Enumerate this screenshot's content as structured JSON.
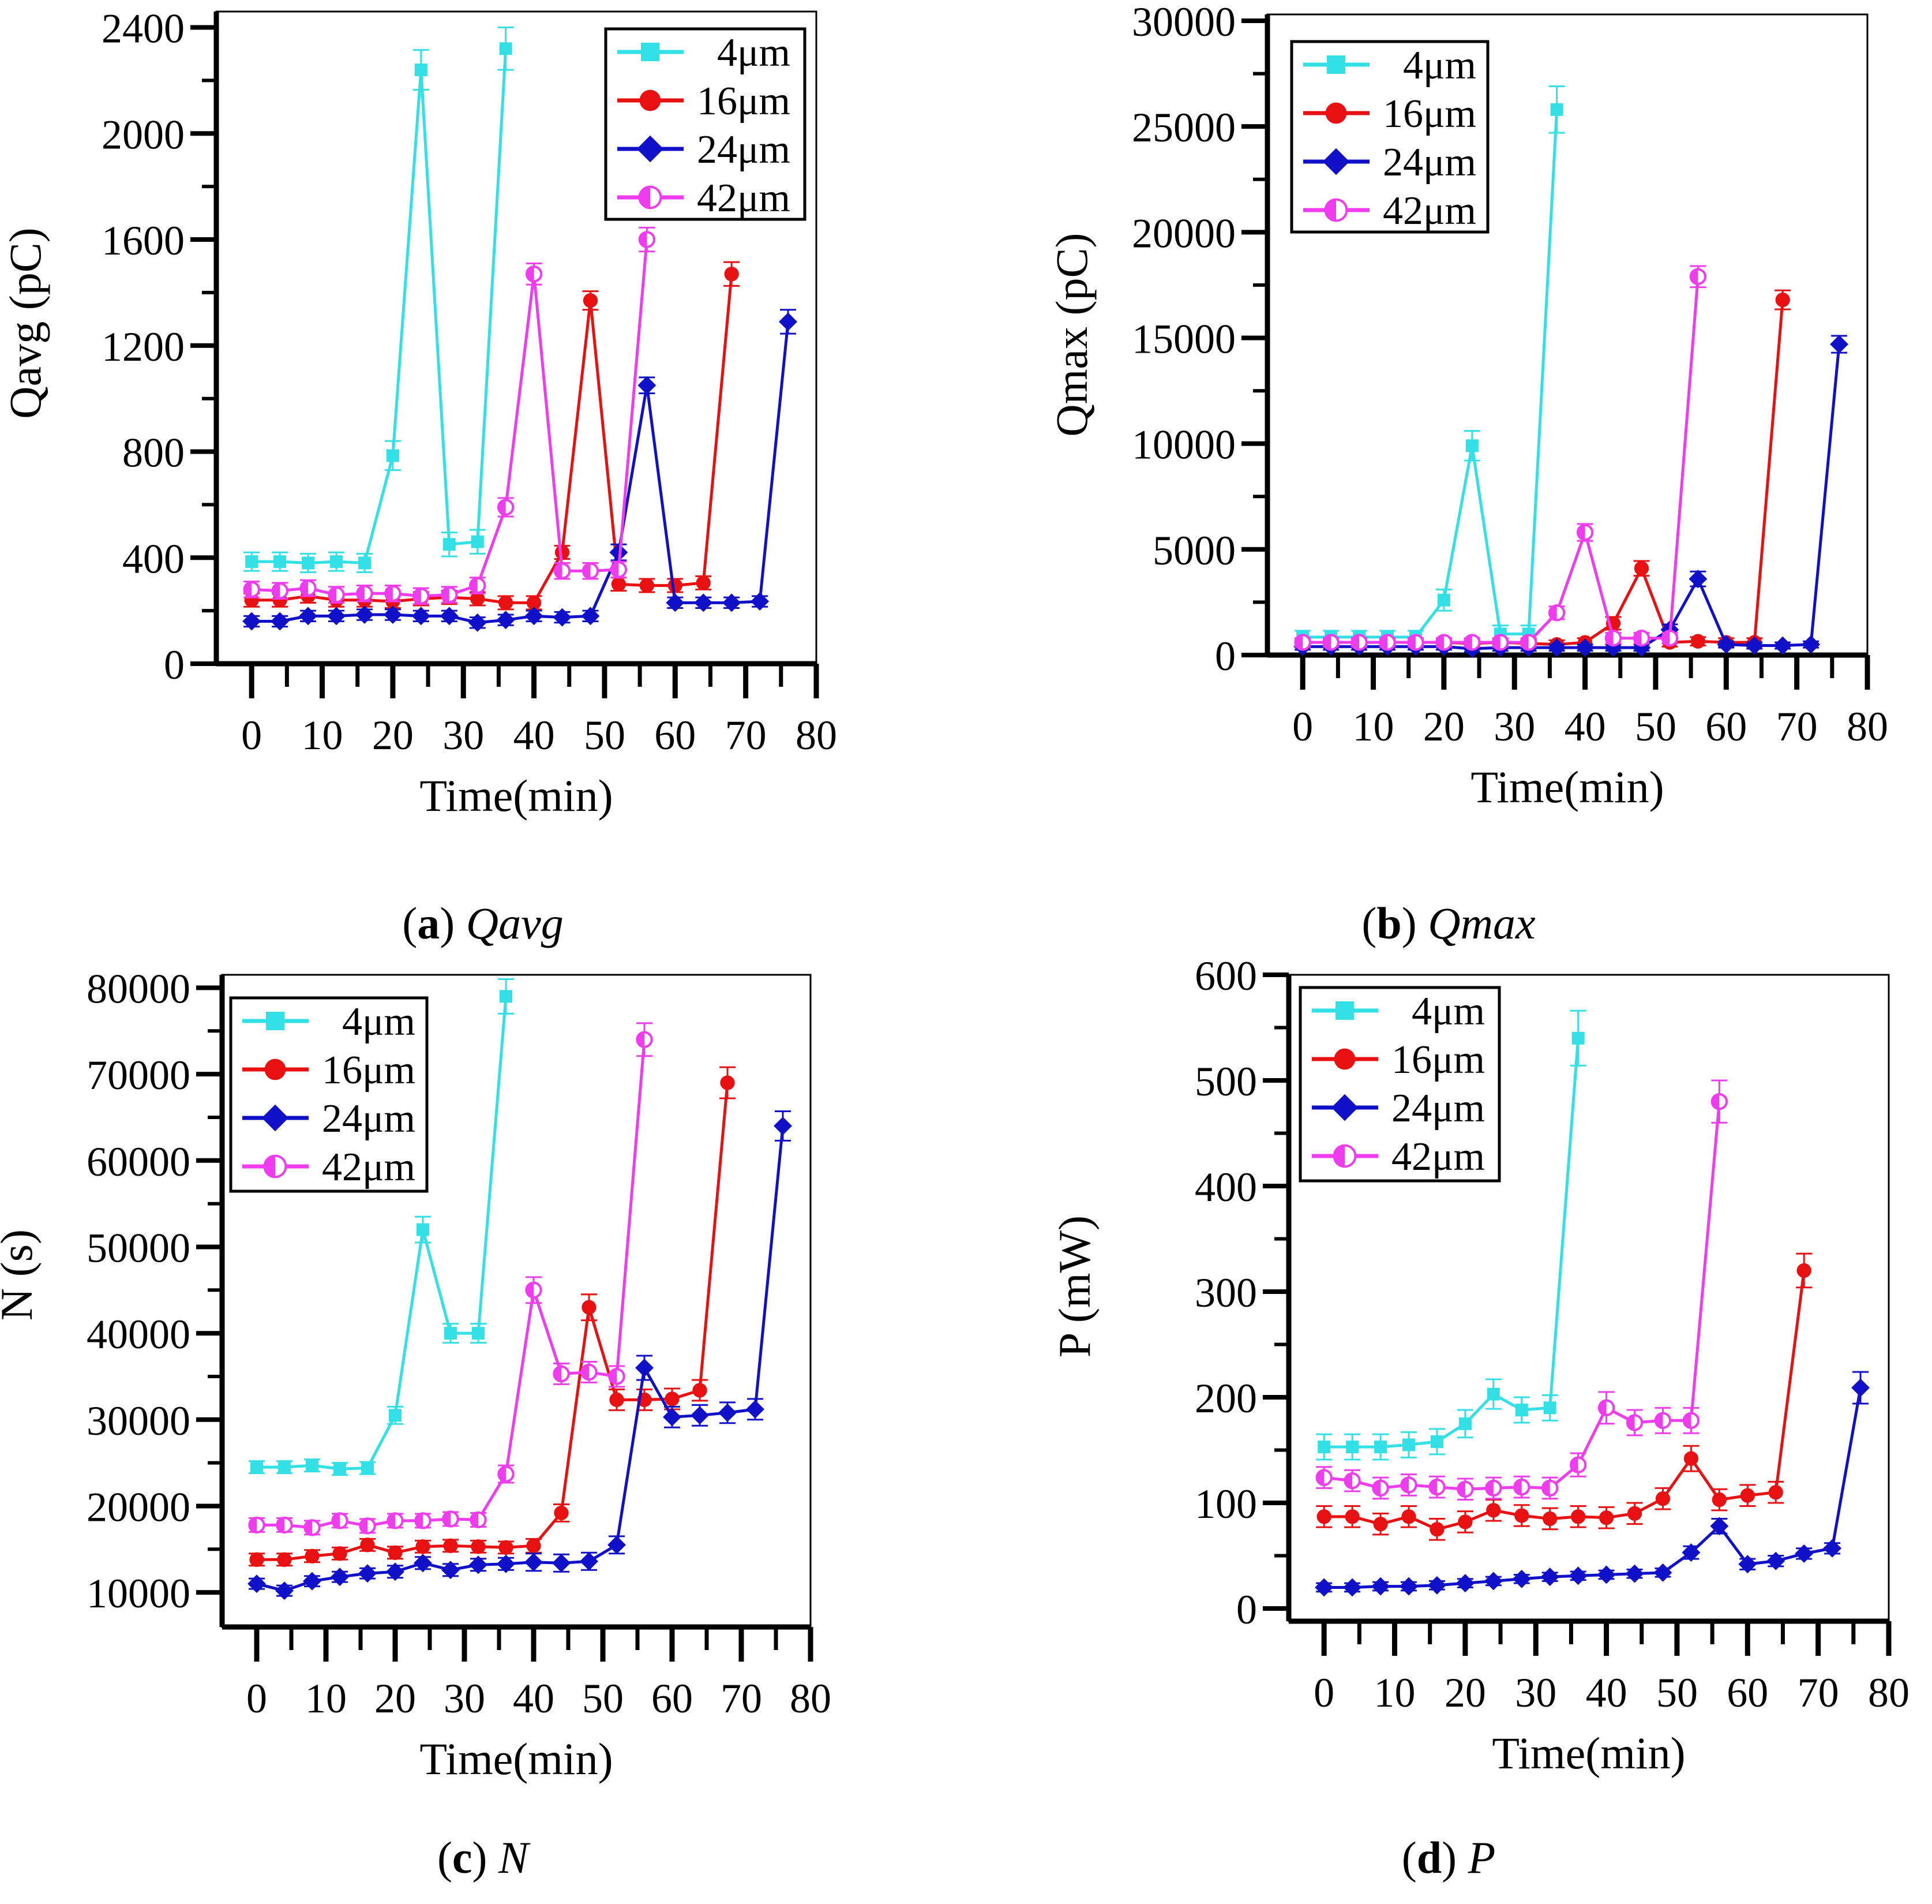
{
  "figure": {
    "panels": [
      {
        "id": "a",
        "caption": {
          "letter": "a",
          "text": "Qavg"
        }
      },
      {
        "id": "b",
        "caption": {
          "letter": "b",
          "text": "Qmax"
        }
      },
      {
        "id": "c",
        "caption": {
          "letter": "c",
          "text": "N"
        }
      },
      {
        "id": "d",
        "caption": {
          "letter": "d",
          "text": "P"
        }
      }
    ]
  },
  "colors": {
    "4um": "#33e0e6",
    "16um": "#e81010",
    "24um": "#1010c8",
    "42um": "#ee3cee"
  },
  "chart_data": [
    {
      "type": "line",
      "panel": "a",
      "title": "",
      "xlabel": "Time(min)",
      "ylabel": "Qavg (pC)",
      "xlim": [
        -5,
        80
      ],
      "ylim": [
        0,
        2460
      ],
      "xticks": [
        0,
        10,
        20,
        30,
        40,
        50,
        60,
        70,
        80
      ],
      "yticks": [
        0,
        400,
        800,
        1200,
        1600,
        2000,
        2400
      ],
      "legend_position": "top-right",
      "series": [
        {
          "name": "4μm",
          "marker": "square",
          "color": "#33e0e6",
          "x": [
            0,
            4,
            8,
            12,
            16,
            20,
            24,
            28,
            32,
            36
          ],
          "y": [
            385,
            385,
            380,
            385,
            380,
            785,
            2240,
            450,
            460,
            2320
          ],
          "err": [
            35,
            35,
            35,
            35,
            35,
            55,
            75,
            45,
            45,
            80
          ]
        },
        {
          "name": "16μm",
          "marker": "circle",
          "color": "#e81010",
          "x": [
            0,
            4,
            8,
            12,
            16,
            20,
            24,
            28,
            32,
            36,
            40,
            44,
            48,
            52,
            56,
            60,
            64,
            68
          ],
          "y": [
            240,
            240,
            255,
            240,
            240,
            235,
            245,
            250,
            245,
            230,
            230,
            420,
            1370,
            300,
            295,
            295,
            305,
            1470
          ],
          "err": [
            25,
            25,
            25,
            25,
            25,
            25,
            25,
            25,
            25,
            25,
            25,
            25,
            35,
            25,
            25,
            25,
            25,
            45
          ]
        },
        {
          "name": "24μm",
          "marker": "diamond",
          "color": "#1010c8",
          "x": [
            0,
            4,
            8,
            12,
            16,
            20,
            24,
            28,
            32,
            36,
            40,
            44,
            48,
            52,
            56,
            60,
            64,
            68,
            72,
            76
          ],
          "y": [
            160,
            160,
            180,
            180,
            185,
            185,
            180,
            180,
            155,
            165,
            180,
            175,
            180,
            420,
            1050,
            230,
            230,
            230,
            235,
            1290
          ],
          "err": [
            20,
            20,
            20,
            20,
            20,
            20,
            20,
            20,
            20,
            20,
            20,
            20,
            20,
            30,
            30,
            20,
            20,
            20,
            20,
            45
          ]
        },
        {
          "name": "42μm",
          "marker": "half-circle",
          "color": "#ee3cee",
          "x": [
            0,
            4,
            8,
            12,
            16,
            20,
            24,
            28,
            32,
            36,
            40,
            44,
            48,
            52,
            56
          ],
          "y": [
            280,
            275,
            285,
            260,
            265,
            265,
            255,
            260,
            295,
            590,
            1470,
            350,
            350,
            355,
            1600
          ],
          "err": [
            30,
            30,
            30,
            30,
            30,
            30,
            30,
            30,
            30,
            35,
            40,
            30,
            30,
            30,
            45
          ]
        }
      ]
    },
    {
      "type": "line",
      "panel": "b",
      "title": "",
      "xlabel": "Time(min)",
      "ylabel": "Qmax (pC)",
      "xlim": [
        -5,
        80
      ],
      "ylim": [
        0,
        30300
      ],
      "xticks": [
        0,
        10,
        20,
        30,
        40,
        50,
        60,
        70,
        80
      ],
      "yticks": [
        0,
        5000,
        10000,
        15000,
        20000,
        25000,
        30000
      ],
      "legend_position": "top-left",
      "series": [
        {
          "name": "4μm",
          "marker": "square",
          "color": "#33e0e6",
          "x": [
            0,
            4,
            8,
            12,
            16,
            20,
            24,
            28,
            32,
            36
          ],
          "y": [
            850,
            850,
            850,
            850,
            850,
            2600,
            9900,
            1000,
            1000,
            25800
          ],
          "err": [
            300,
            300,
            300,
            300,
            300,
            500,
            700,
            400,
            400,
            1100
          ]
        },
        {
          "name": "16μm",
          "marker": "circle",
          "color": "#e81010",
          "x": [
            0,
            4,
            8,
            12,
            16,
            20,
            24,
            28,
            32,
            36,
            40,
            44,
            48,
            52,
            56,
            60,
            64,
            68
          ],
          "y": [
            600,
            600,
            600,
            600,
            600,
            600,
            550,
            600,
            550,
            500,
            600,
            1500,
            4100,
            600,
            650,
            600,
            600,
            16800
          ],
          "err": [
            200,
            200,
            200,
            200,
            200,
            200,
            200,
            200,
            200,
            200,
            200,
            300,
            350,
            200,
            200,
            200,
            200,
            450
          ]
        },
        {
          "name": "24μm",
          "marker": "diamond",
          "color": "#1010c8",
          "x": [
            0,
            4,
            8,
            12,
            16,
            20,
            24,
            28,
            32,
            36,
            40,
            44,
            48,
            52,
            56,
            60,
            64,
            68,
            72,
            76
          ],
          "y": [
            400,
            400,
            400,
            400,
            400,
            400,
            300,
            350,
            350,
            350,
            350,
            350,
            350,
            1200,
            3600,
            500,
            450,
            450,
            500,
            14700
          ],
          "err": [
            150,
            150,
            150,
            150,
            150,
            150,
            150,
            150,
            150,
            150,
            150,
            150,
            150,
            250,
            350,
            150,
            150,
            150,
            150,
            400
          ]
        },
        {
          "name": "42μm",
          "marker": "half-circle",
          "color": "#ee3cee",
          "x": [
            0,
            4,
            8,
            12,
            16,
            20,
            24,
            28,
            32,
            36,
            40,
            44,
            48,
            52,
            56
          ],
          "y": [
            600,
            600,
            600,
            600,
            600,
            600,
            600,
            600,
            600,
            2000,
            5800,
            800,
            800,
            800,
            17900
          ],
          "err": [
            200,
            200,
            200,
            200,
            200,
            200,
            200,
            200,
            200,
            300,
            400,
            250,
            250,
            250,
            500
          ]
        }
      ]
    },
    {
      "type": "line",
      "panel": "c",
      "title": "",
      "xlabel": "Time(min)",
      "ylabel": "N (s)",
      "xlim": [
        -5,
        80
      ],
      "ylim": [
        6000,
        81500
      ],
      "xticks": [
        0,
        10,
        20,
        30,
        40,
        50,
        60,
        70,
        80
      ],
      "yticks": [
        10000,
        20000,
        30000,
        40000,
        50000,
        60000,
        70000,
        80000
      ],
      "legend_position": "top-left",
      "series": [
        {
          "name": "4μm",
          "marker": "square",
          "color": "#33e0e6",
          "x": [
            0,
            4,
            8,
            12,
            16,
            20,
            24,
            28,
            32,
            36
          ],
          "y": [
            24500,
            24500,
            24700,
            24300,
            24400,
            30500,
            52000,
            40000,
            40000,
            79000
          ],
          "err": [
            700,
            700,
            700,
            700,
            700,
            1000,
            1500,
            1100,
            1100,
            2000
          ]
        },
        {
          "name": "16μm",
          "marker": "circle",
          "color": "#e81010",
          "x": [
            0,
            4,
            8,
            12,
            16,
            20,
            24,
            28,
            32,
            36,
            40,
            44,
            48,
            52,
            56,
            60,
            64,
            68
          ],
          "y": [
            13800,
            13800,
            14200,
            14500,
            15500,
            14600,
            15300,
            15400,
            15300,
            15200,
            15400,
            19200,
            43000,
            32300,
            32300,
            32400,
            33400,
            69000
          ],
          "err": [
            700,
            700,
            700,
            700,
            700,
            700,
            700,
            700,
            700,
            700,
            800,
            1000,
            1500,
            1200,
            1200,
            1200,
            1200,
            1800
          ]
        },
        {
          "name": "24μm",
          "marker": "diamond",
          "color": "#1010c8",
          "x": [
            0,
            4,
            8,
            12,
            16,
            20,
            24,
            28,
            32,
            36,
            40,
            44,
            48,
            52,
            56,
            60,
            64,
            68,
            72,
            76
          ],
          "y": [
            11000,
            10200,
            11300,
            11800,
            12200,
            12400,
            13400,
            12600,
            13200,
            13300,
            13500,
            13400,
            13600,
            15500,
            36000,
            30300,
            30500,
            30800,
            31200,
            64000
          ],
          "err": [
            600,
            600,
            600,
            600,
            600,
            700,
            700,
            700,
            700,
            700,
            1000,
            1000,
            1000,
            1000,
            1400,
            1200,
            1200,
            1200,
            1200,
            1700
          ]
        },
        {
          "name": "42μm",
          "marker": "half-circle",
          "color": "#ee3cee",
          "x": [
            0,
            4,
            8,
            12,
            16,
            20,
            24,
            28,
            32,
            36,
            40,
            44,
            48,
            52,
            56
          ],
          "y": [
            17800,
            17800,
            17500,
            18300,
            17700,
            18300,
            18300,
            18500,
            18400,
            23700,
            45000,
            35300,
            35500,
            35000,
            74000
          ],
          "err": [
            800,
            800,
            800,
            800,
            800,
            800,
            800,
            800,
            800,
            1000,
            1500,
            1200,
            1200,
            1200,
            1900
          ]
        }
      ]
    },
    {
      "type": "line",
      "panel": "d",
      "title": "",
      "xlabel": "Time(min)",
      "ylabel": "P (mW)",
      "xlim": [
        -5,
        80
      ],
      "ylim": [
        -12,
        600
      ],
      "xticks": [
        0,
        10,
        20,
        30,
        40,
        50,
        60,
        70,
        80
      ],
      "yticks": [
        0,
        100,
        200,
        300,
        400,
        500,
        600
      ],
      "legend_position": "top-left",
      "series": [
        {
          "name": "4μm",
          "marker": "square",
          "color": "#33e0e6",
          "x": [
            0,
            4,
            8,
            12,
            16,
            20,
            24,
            28,
            32,
            36
          ],
          "y": [
            153,
            153,
            153,
            155,
            158,
            175,
            203,
            188,
            190,
            540
          ],
          "err": [
            12,
            12,
            12,
            12,
            12,
            13,
            14,
            12,
            12,
            26
          ]
        },
        {
          "name": "16μm",
          "marker": "circle",
          "color": "#e81010",
          "x": [
            0,
            4,
            8,
            12,
            16,
            20,
            24,
            28,
            32,
            36,
            40,
            44,
            48,
            52,
            56,
            60,
            64,
            68
          ],
          "y": [
            87,
            87,
            80,
            87,
            75,
            82,
            93,
            88,
            85,
            87,
            86,
            90,
            104,
            142,
            103,
            107,
            110,
            320
          ],
          "err": [
            10,
            10,
            10,
            10,
            10,
            10,
            10,
            10,
            10,
            10,
            10,
            10,
            10,
            12,
            10,
            10,
            10,
            16
          ]
        },
        {
          "name": "24μm",
          "marker": "diamond",
          "color": "#1010c8",
          "x": [
            0,
            4,
            8,
            12,
            16,
            20,
            24,
            28,
            32,
            36,
            40,
            44,
            48,
            52,
            56,
            60,
            64,
            68,
            72,
            76
          ],
          "y": [
            20,
            20,
            21,
            21,
            22,
            24,
            26,
            28,
            30,
            31,
            32,
            33,
            34,
            53,
            78,
            42,
            45,
            52,
            57,
            209
          ],
          "err": [
            4,
            4,
            4,
            4,
            4,
            4,
            4,
            4,
            4,
            4,
            4,
            4,
            4,
            6,
            7,
            5,
            5,
            5,
            5,
            15
          ]
        },
        {
          "name": "42μm",
          "marker": "half-circle",
          "color": "#ee3cee",
          "x": [
            0,
            4,
            8,
            12,
            16,
            20,
            24,
            28,
            32,
            36,
            40,
            44,
            48,
            52,
            56
          ],
          "y": [
            124,
            121,
            114,
            117,
            115,
            113,
            114,
            115,
            114,
            136,
            190,
            176,
            178,
            178,
            480
          ],
          "err": [
            10,
            10,
            10,
            10,
            10,
            10,
            10,
            10,
            10,
            11,
            15,
            12,
            12,
            12,
            20
          ]
        }
      ]
    }
  ]
}
